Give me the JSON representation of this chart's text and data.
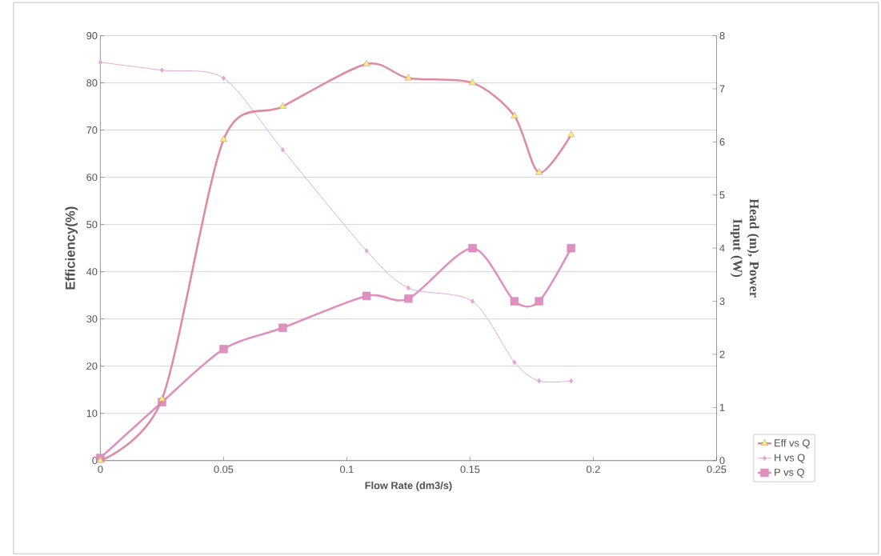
{
  "chart_data": {
    "type": "line",
    "xlabel": "Flow Rate (dm3/s)",
    "ylabel": "Efficiency(%)",
    "y2label": "Head (m), Power Input (W)",
    "x": [
      0,
      0.025,
      0.05,
      0.074,
      0.108,
      0.125,
      0.151,
      0.168,
      0.178,
      0.191
    ],
    "series": [
      {
        "name": "Eff vs Q",
        "color": "#e08aa0",
        "marker": "triangle",
        "values": [
          0,
          13,
          68,
          75,
          84,
          81,
          80,
          73,
          61,
          69
        ]
      },
      {
        "name": "H vs Q",
        "color": "#e6a8d8",
        "marker": "diamond",
        "axis": "y2",
        "values": [
          7.5,
          7.35,
          7.2,
          5.85,
          3.95,
          3.25,
          3.0,
          1.85,
          1.5,
          1.5
        ]
      },
      {
        "name": "P vs Q",
        "color": "#e090c0",
        "marker": "square",
        "axis": "y2",
        "values": [
          0.05,
          1.1,
          2.1,
          2.5,
          3.1,
          3.05,
          4.0,
          3.0,
          3.0,
          4.0
        ]
      }
    ],
    "xlim": [
      0,
      0.25
    ],
    "xticks": [
      0,
      0.05,
      0.1,
      0.15,
      0.2,
      0.25
    ],
    "ylim": [
      0,
      90
    ],
    "yticks": [
      0,
      10,
      20,
      30,
      40,
      50,
      60,
      70,
      80,
      90
    ],
    "y2lim": [
      0,
      8
    ],
    "y2ticks": [
      0,
      1,
      2,
      3,
      4,
      5,
      6,
      7,
      8
    ],
    "grid": "y",
    "legend": "bottom right",
    "line_style": "solid"
  }
}
